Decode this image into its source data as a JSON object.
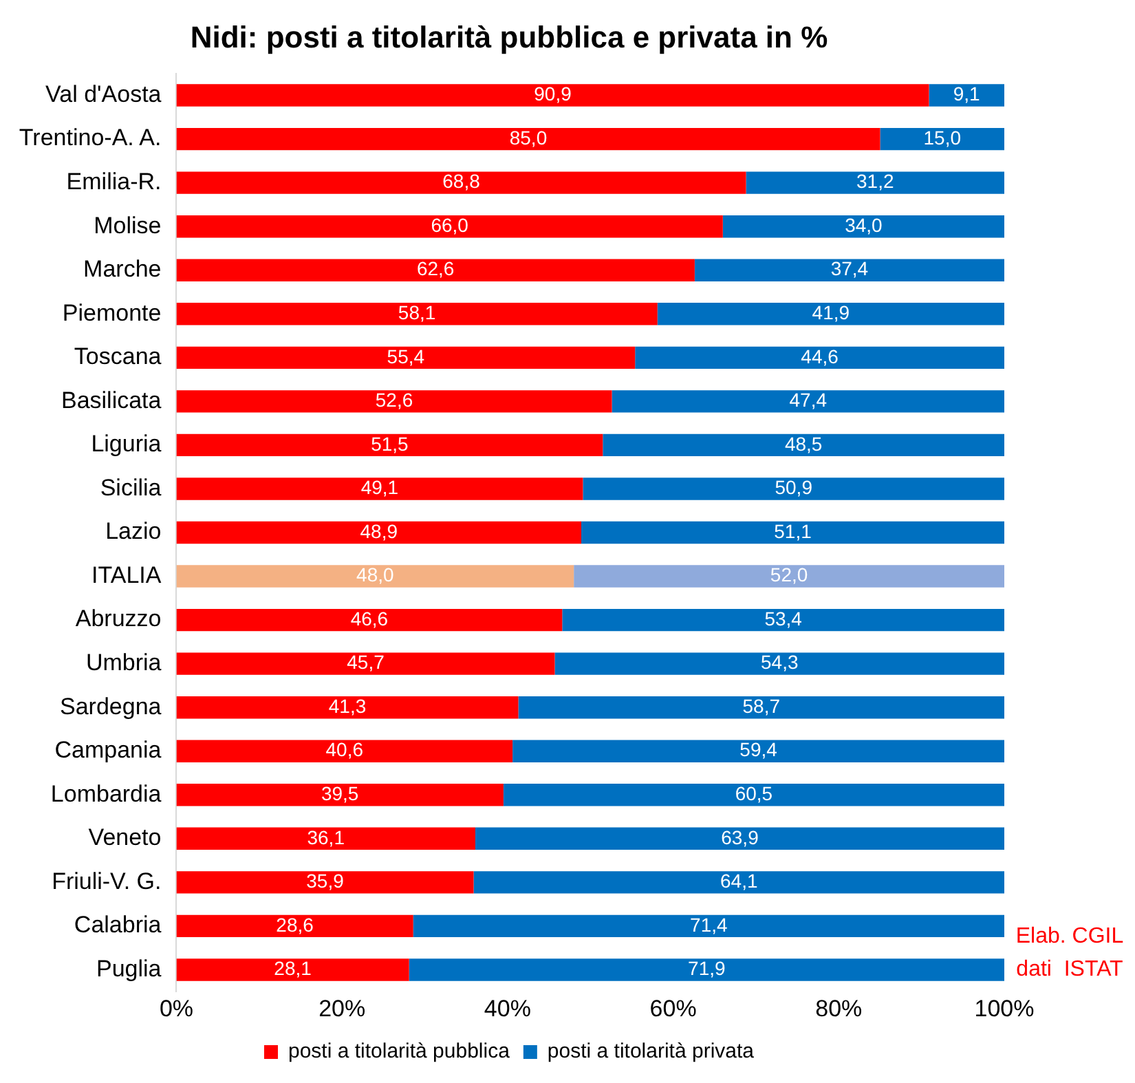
{
  "chart_data": {
    "type": "bar",
    "orientation": "horizontal",
    "stacked": true,
    "title": "Nidi: posti a titolarità pubblica e privata in %",
    "categories": [
      "Val d'Aosta",
      "Trentino-A. A.",
      "Emilia-R.",
      "Molise",
      "Marche",
      "Piemonte",
      "Toscana",
      "Basilicata",
      "Liguria",
      "Sicilia",
      "Lazio",
      "ITALIA",
      "Abruzzo",
      "Umbria",
      "Sardegna",
      "Campania",
      "Lombardia",
      "Veneto",
      "Friuli-V. G.",
      "Calabria",
      "Puglia"
    ],
    "series": [
      {
        "name": "posti a titolarità pubblica",
        "color": "#ff0000",
        "colors": [
          "#ff0000",
          "#ff0000",
          "#ff0000",
          "#ff0000",
          "#ff0000",
          "#ff0000",
          "#ff0000",
          "#ff0000",
          "#ff0000",
          "#ff0000",
          "#ff0000",
          "#f4b183",
          "#ff0000",
          "#ff0000",
          "#ff0000",
          "#ff0000",
          "#ff0000",
          "#ff0000",
          "#ff0000",
          "#ff0000",
          "#ff0000"
        ],
        "values": [
          90.9,
          85.0,
          68.8,
          66.0,
          62.6,
          58.1,
          55.4,
          52.6,
          51.5,
          49.1,
          48.9,
          48.0,
          46.6,
          45.7,
          41.3,
          40.6,
          39.5,
          36.1,
          35.9,
          28.6,
          28.1
        ],
        "value_labels": [
          "90,9",
          "85,0",
          "68,8",
          "66,0",
          "62,6",
          "58,1",
          "55,4",
          "52,6",
          "51,5",
          "49,1",
          "48,9",
          "48,0",
          "46,6",
          "45,7",
          "41,3",
          "40,6",
          "39,5",
          "36,1",
          "35,9",
          "28,6",
          "28,1"
        ]
      },
      {
        "name": "posti a titolarità privata",
        "color": "#0070c0",
        "colors": [
          "#0070c0",
          "#0070c0",
          "#0070c0",
          "#0070c0",
          "#0070c0",
          "#0070c0",
          "#0070c0",
          "#0070c0",
          "#0070c0",
          "#0070c0",
          "#0070c0",
          "#8faadc",
          "#0070c0",
          "#0070c0",
          "#0070c0",
          "#0070c0",
          "#0070c0",
          "#0070c0",
          "#0070c0",
          "#0070c0",
          "#0070c0"
        ],
        "values": [
          9.1,
          15.0,
          31.2,
          34.0,
          37.4,
          41.9,
          44.6,
          47.4,
          48.5,
          50.9,
          51.1,
          52.0,
          53.4,
          54.3,
          58.7,
          59.4,
          60.5,
          63.9,
          64.1,
          71.4,
          71.9
        ],
        "value_labels": [
          "9,1",
          "15,0",
          "31,2",
          "34,0",
          "37,4",
          "41,9",
          "44,6",
          "47,4",
          "48,5",
          "50,9",
          "51,1",
          "52,0",
          "53,4",
          "54,3",
          "58,7",
          "59,4",
          "60,5",
          "63,9",
          "64,1",
          "71,4",
          "71,9"
        ]
      }
    ],
    "xlim": [
      0,
      100
    ],
    "xticks": [
      {
        "value": 0,
        "label": "0%"
      },
      {
        "value": 20,
        "label": "20%"
      },
      {
        "value": 40,
        "label": "40%"
      },
      {
        "value": 60,
        "label": "60%"
      },
      {
        "value": 80,
        "label": "80%"
      },
      {
        "value": 100,
        "label": "100%"
      }
    ],
    "grid": false,
    "legend": "bottom",
    "annotations": [
      "Elab. CGIL",
      "dati  ISTAT"
    ]
  }
}
